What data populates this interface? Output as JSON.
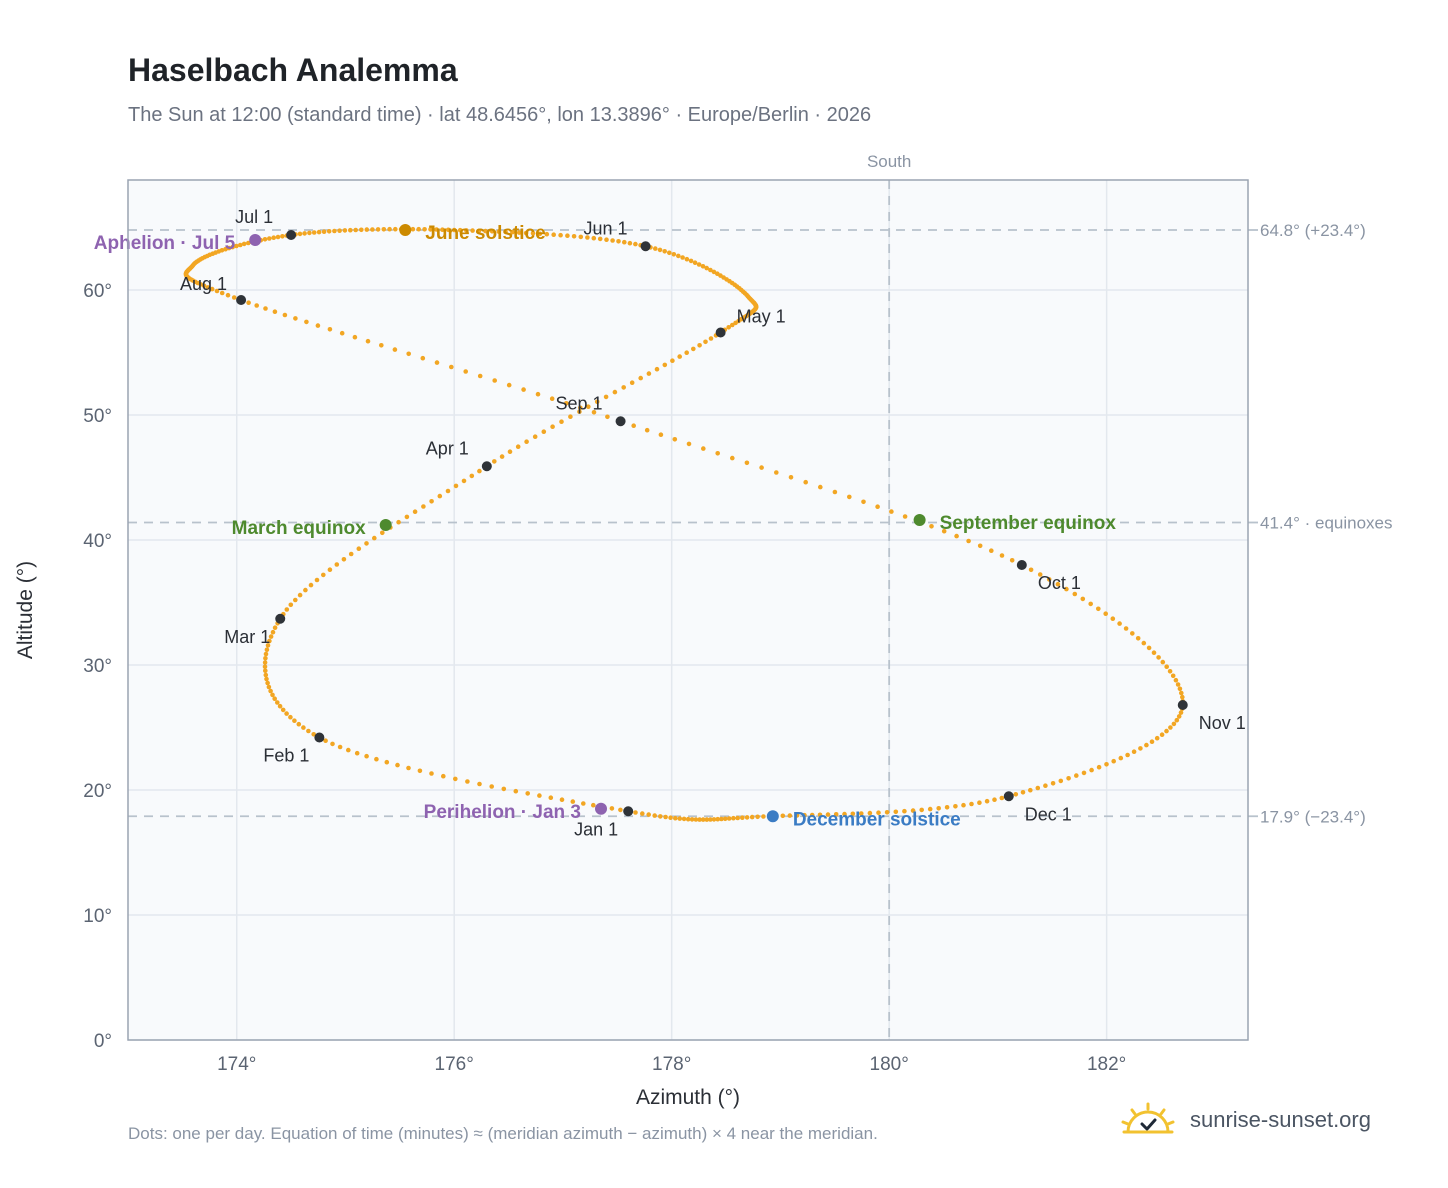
{
  "header": {
    "title": "Haselbach Analemma",
    "subtitle": "The Sun at 12:00 (standard time) · lat 48.6456°, lon 13.3896° · Europe/Berlin · 2026"
  },
  "footer": {
    "note": "Dots: one per day. Equation of time (minutes) ≈ (meridian azimuth − azimuth) × 4 near the meridian.",
    "brand": "sunrise-sunset.org"
  },
  "colors": {
    "path": "#f2a623",
    "month_marker": "#2f3338",
    "june_solstice": "#cc8a00",
    "december_solstice": "#3b7cc4",
    "equinox": "#4e8a2e",
    "apsis": "#8e63b0",
    "reference_line": "#b8c2cc",
    "grid": "#e3e8ee",
    "plot_bg": "#f8fafc",
    "frame": "#9aa4b2",
    "brand_icon": "#f2c230"
  },
  "icons": {
    "brand": "sun-check-icon"
  },
  "chart_data": {
    "type": "scatter",
    "xlabel": "Azimuth (°)",
    "ylabel": "Altitude (°)",
    "xlim": [
      173,
      183.3
    ],
    "ylim": [
      0,
      68.8
    ],
    "xticks": [
      174,
      176,
      178,
      180,
      182
    ],
    "yticks": [
      0,
      10,
      20,
      30,
      40,
      50,
      60
    ],
    "x_tick_suffix": "°",
    "y_tick_suffix": "°",
    "grid": true,
    "meridian": {
      "azimuth": 180,
      "label": "South"
    },
    "reference_lines": [
      {
        "altitude": 64.8,
        "label": "64.8° (+23.4°)"
      },
      {
        "altitude": 41.4,
        "label": "41.4° · equinoxes"
      },
      {
        "altitude": 17.9,
        "label": "17.9° (−23.4°)"
      }
    ],
    "series": [
      {
        "points": [
          [
            177.6,
            18.3
          ],
          [
            174.76,
            24.2
          ],
          [
            174.4,
            33.7
          ],
          [
            176.3,
            45.9
          ],
          [
            178.45,
            56.6
          ],
          [
            178.7,
            59.5
          ],
          [
            177.76,
            63.5
          ],
          [
            176.0,
            64.8
          ],
          [
            174.5,
            64.4
          ],
          [
            173.6,
            62.0
          ],
          [
            174.04,
            59.2
          ],
          [
            177.53,
            49.5
          ],
          [
            181.22,
            38.0
          ],
          [
            182.7,
            26.8
          ],
          [
            181.1,
            19.5
          ],
          [
            178.9,
            17.9
          ],
          [
            177.6,
            18.3
          ]
        ]
      }
    ],
    "month_markers": [
      {
        "label": "Jan 1",
        "azimuth": 177.6,
        "altitude": 18.3,
        "anchor": "bottom-left"
      },
      {
        "label": "Feb 1",
        "azimuth": 174.76,
        "altitude": 24.2,
        "anchor": "bottom-left"
      },
      {
        "label": "Mar 1",
        "azimuth": 174.4,
        "altitude": 33.7,
        "anchor": "bottom-left"
      },
      {
        "label": "Apr 1",
        "azimuth": 176.3,
        "altitude": 45.9,
        "anchor": "top-left"
      },
      {
        "label": "May 1",
        "azimuth": 178.45,
        "altitude": 56.6,
        "anchor": "right"
      },
      {
        "label": "Jun 1",
        "azimuth": 177.76,
        "altitude": 63.5,
        "anchor": "top-left"
      },
      {
        "label": "Jul 1",
        "azimuth": 174.5,
        "altitude": 64.4,
        "anchor": "top-left"
      },
      {
        "label": "Aug 1",
        "azimuth": 174.04,
        "altitude": 59.2,
        "anchor": "left-top"
      },
      {
        "label": "Sep 1",
        "azimuth": 177.53,
        "altitude": 49.5,
        "anchor": "top-left"
      },
      {
        "label": "Oct 1",
        "azimuth": 181.22,
        "altitude": 38.0,
        "anchor": "bottom-right"
      },
      {
        "label": "Nov 1",
        "azimuth": 182.7,
        "altitude": 26.8,
        "anchor": "bottom-right"
      },
      {
        "label": "Dec 1",
        "azimuth": 181.1,
        "altitude": 19.5,
        "anchor": "bottom-right"
      }
    ],
    "events": [
      {
        "label": "June solstice",
        "azimuth": 175.55,
        "altitude": 64.8,
        "color_key": "june_solstice",
        "side": "right"
      },
      {
        "label": "December solstice",
        "azimuth": 178.93,
        "altitude": 17.9,
        "color_key": "december_solstice",
        "side": "right"
      },
      {
        "label": "March equinox",
        "azimuth": 175.37,
        "altitude": 41.2,
        "color_key": "equinox",
        "side": "left"
      },
      {
        "label": "September equinox",
        "azimuth": 180.28,
        "altitude": 41.6,
        "color_key": "equinox",
        "side": "right"
      },
      {
        "label": "Perihelion · Jan 3",
        "azimuth": 177.35,
        "altitude": 18.5,
        "color_key": "apsis",
        "side": "left"
      },
      {
        "label": "Aphelion · Jul 5",
        "azimuth": 174.17,
        "altitude": 64.0,
        "color_key": "apsis",
        "side": "left"
      }
    ]
  }
}
